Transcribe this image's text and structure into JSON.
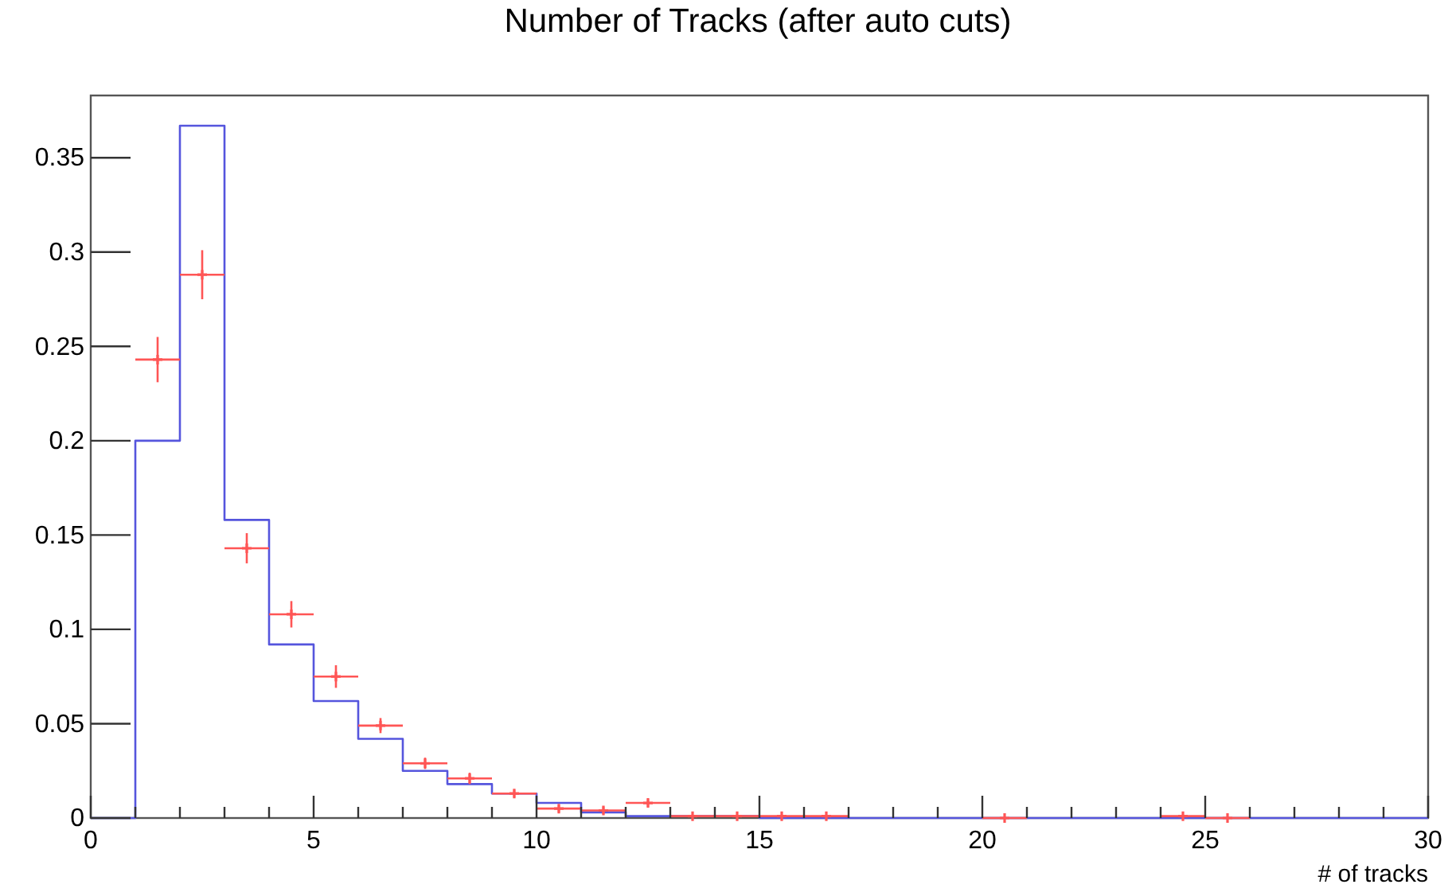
{
  "chart_data": {
    "type": "histogram",
    "title": "Number of Tracks (after auto cuts)",
    "xlabel": "# of tracks",
    "bins": [
      0,
      1,
      2,
      3,
      4,
      5,
      6,
      7,
      8,
      9,
      10,
      11,
      12,
      13,
      14,
      15,
      16,
      17,
      18,
      19,
      20,
      21,
      22,
      23,
      24,
      25,
      26,
      27,
      28,
      29,
      30
    ],
    "xlim": [
      0,
      30
    ],
    "xticks": [
      0,
      5,
      10,
      15,
      20,
      25,
      30
    ],
    "ylim": [
      0,
      0.383
    ],
    "yticks": [
      0,
      0.05,
      0.1,
      0.15,
      0.2,
      0.25,
      0.3,
      0.35
    ],
    "grid": false,
    "marker": "cross",
    "series": [
      {
        "color": "#5555dd",
        "values": [
          0,
          0.2,
          0.367,
          0.158,
          0.092,
          0.062,
          0.042,
          0.025,
          0.018,
          0.013,
          0.008,
          0.003,
          0.001,
          0.001,
          0.001,
          0,
          0,
          0,
          0,
          0,
          0,
          0,
          0,
          0,
          0,
          0,
          0,
          0,
          0,
          0
        ]
      },
      {
        "type": "scatter",
        "color": "#ff5555",
        "x": [
          1.5,
          2.5,
          3.5,
          4.5,
          5.5,
          6.5,
          7.5,
          8.5,
          9.5,
          10.5,
          11.5,
          12.5,
          13.5,
          14.5,
          15.5,
          16.5,
          20.5,
          24.5,
          25.5
        ],
        "values": [
          0.243,
          0.288,
          0.143,
          0.108,
          0.075,
          0.049,
          0.029,
          0.021,
          0.013,
          0.005,
          0.004,
          0.008,
          0.001,
          0.001,
          0.001,
          0.001,
          0,
          0.001,
          0
        ],
        "errors": [
          0.012,
          0.013,
          0.008,
          0.007,
          0.006,
          0.004,
          0.003,
          0.003,
          0.002,
          0.002,
          0.002,
          0.002,
          null,
          null,
          null,
          null,
          null,
          null,
          null
        ],
        "xerrors": [
          0.5,
          0.5,
          0.5,
          0.5,
          0.5,
          0.5,
          0.5,
          0.5,
          0.5,
          0.5,
          0.5,
          0.5,
          0.5,
          0.5,
          0.5,
          0.5,
          0.5,
          0.5,
          0.5
        ]
      }
    ]
  }
}
